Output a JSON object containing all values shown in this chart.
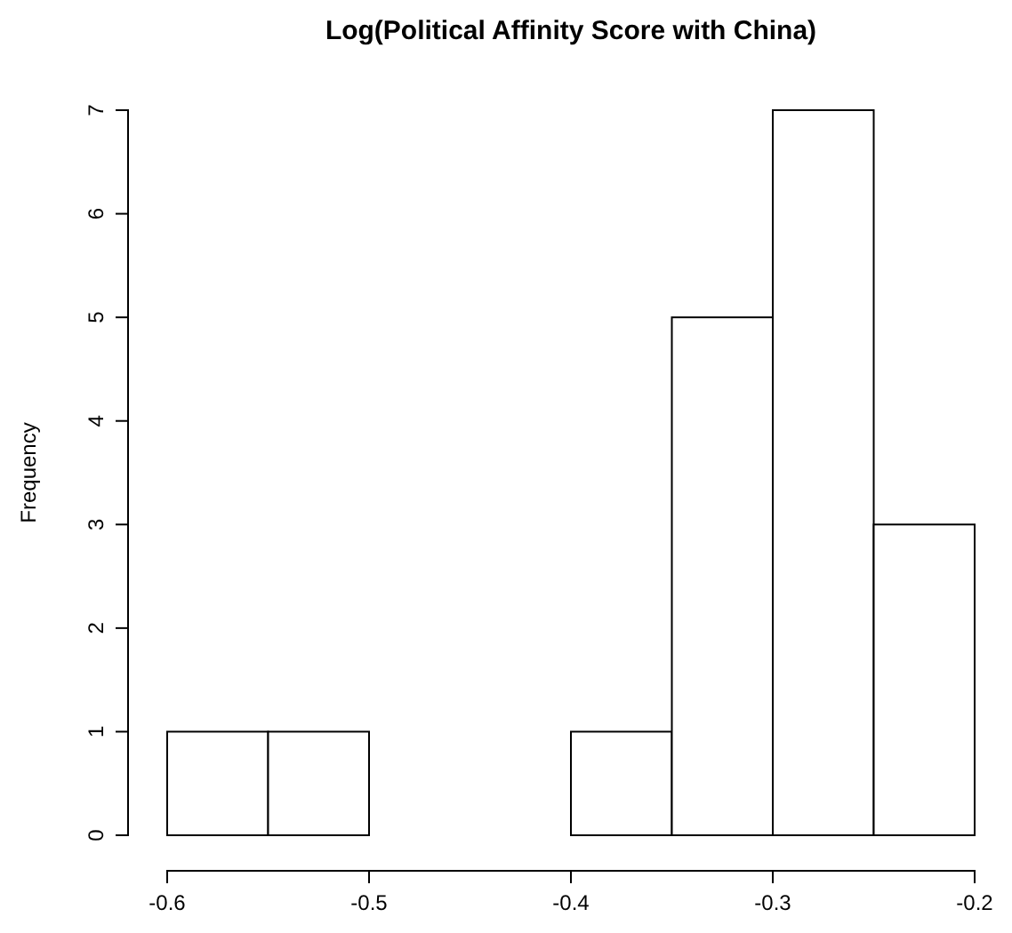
{
  "chart_data": {
    "type": "histogram",
    "title": "Log(Political Affinity Score with China)",
    "ylabel": "Frequency",
    "bins": [
      -0.6,
      -0.55,
      -0.5,
      -0.45,
      -0.4,
      -0.35,
      -0.3,
      -0.25,
      -0.2
    ],
    "values": [
      1,
      1,
      0,
      0,
      1,
      5,
      7,
      3
    ],
    "color": "#ffffff",
    "xlim": [
      -0.6,
      -0.2
    ],
    "xticks": [
      -0.6,
      -0.5,
      -0.4,
      -0.3,
      -0.2
    ],
    "ylim": [
      0,
      7
    ],
    "yticks": [
      0,
      1,
      2,
      3,
      4,
      5,
      6,
      7
    ]
  }
}
